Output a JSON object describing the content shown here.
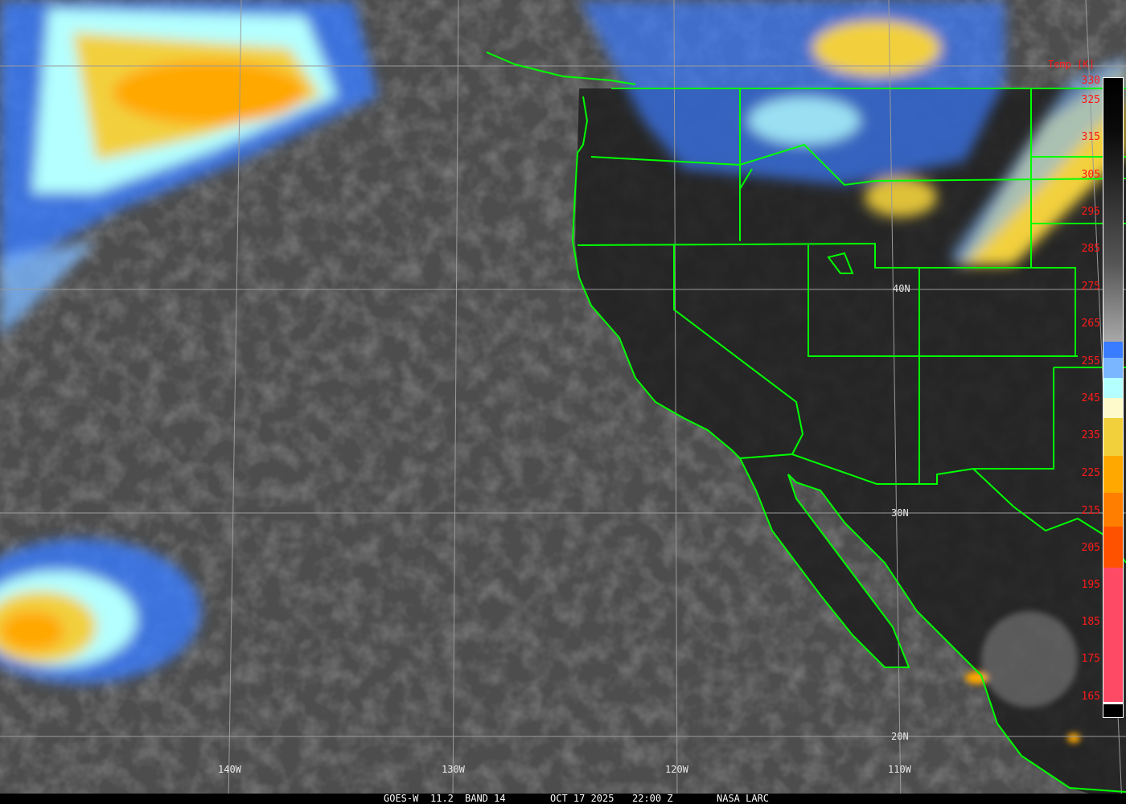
{
  "product": {
    "satellite": "GOES-W",
    "wavelength": "11.2",
    "band": "BAND 14",
    "date": "OCT 17 2025",
    "time": "22:00 Z",
    "credit": "NASA LARC"
  },
  "colorbar": {
    "title": "Temp [K]",
    "labels": [
      "330",
      "325",
      "315",
      "305",
      "295",
      "285",
      "275",
      "265",
      "255",
      "245",
      "235",
      "225",
      "215",
      "205",
      "195",
      "185",
      "175",
      "165"
    ],
    "colors": {
      "blue": "#3a7cff",
      "light_blue": "#7ab6ff",
      "cyan": "#b4ffff",
      "pale_yellow": "#fffacc",
      "yellow": "#f2d03c",
      "amber": "#ffa800",
      "orange": "#ff7e00",
      "red_orange": "#ff5200",
      "pink": "#ff4a66"
    }
  },
  "grid": {
    "lon_labels": [
      "140W",
      "130W",
      "120W",
      "110W"
    ],
    "lat_labels": [
      "40N",
      "30N",
      "20N"
    ]
  },
  "colors": {
    "borders": "#00ff00",
    "grid": "#9a9a9a",
    "label_text": "#ff1a1a"
  }
}
